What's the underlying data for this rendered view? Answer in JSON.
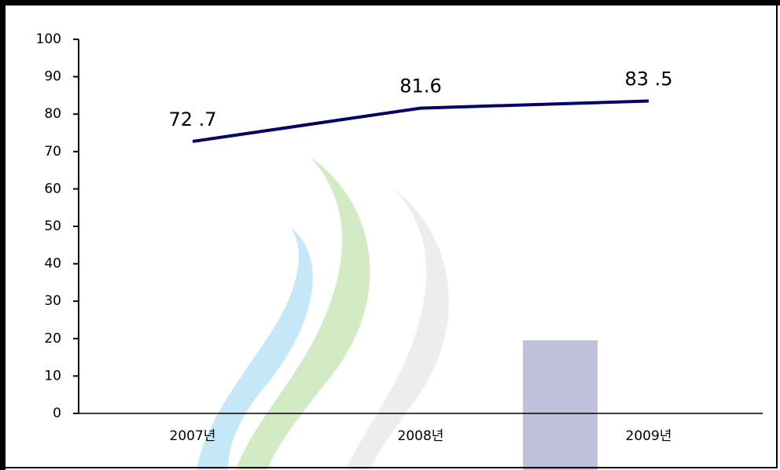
{
  "chart_data": {
    "type": "line",
    "categories": [
      "2007년",
      "2008년",
      "2009년"
    ],
    "series": [
      {
        "color": "#000066",
        "values": [
          72.7,
          81.6,
          83.5
        ],
        "value_labels": [
          "72 .7",
          "81.6",
          "83 .5"
        ]
      }
    ],
    "ylim": [
      0,
      100
    ],
    "yticks": [
      0,
      10,
      20,
      30,
      40,
      50,
      60,
      70,
      80,
      90,
      100
    ]
  }
}
